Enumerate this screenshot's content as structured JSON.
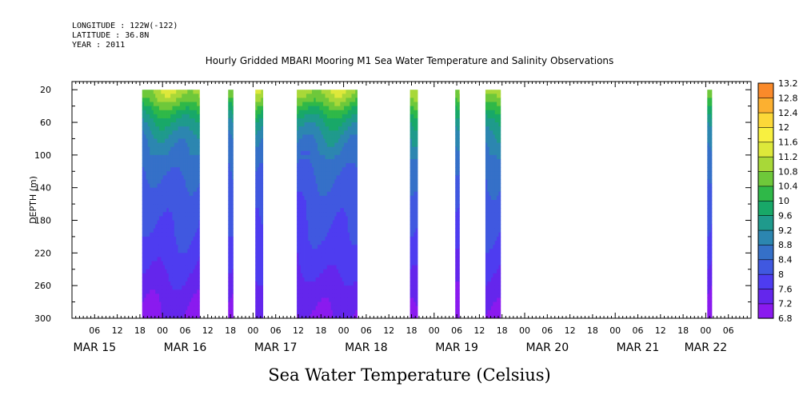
{
  "header": {
    "longitude": "LONGITUDE : 122W(-122)",
    "latitude": "LATITUDE : 36.8N",
    "year": "YEAR : 2011"
  },
  "chart_data": {
    "type": "heatmap",
    "title": "Hourly Gridded MBARI Mooring M1 Sea Water Temperature and Salinity Observations",
    "ylabel": "DEPTH (m)",
    "units_label": "Sea Water Temperature (Celsius)",
    "y_axis": {
      "min": 0,
      "max": 300,
      "inverted": true,
      "ticks": [
        20,
        60,
        100,
        140,
        180,
        220,
        260,
        300
      ],
      "labels": [
        "20",
        "60",
        "100",
        "140",
        "180",
        "220",
        "260",
        "300"
      ]
    },
    "x_axis": {
      "start_hour": 0,
      "end_hour": 180,
      "hour_labels": [
        "06",
        "12",
        "18",
        "00",
        "06",
        "12",
        "18",
        "00",
        "06",
        "12",
        "18",
        "00",
        "06",
        "12",
        "18",
        "00",
        "06",
        "12",
        "18",
        "00",
        "06",
        "12",
        "18",
        "00",
        "06",
        "12",
        "18",
        "00",
        "06"
      ],
      "date_labels": [
        {
          "label": "MAR 15",
          "hour": 6
        },
        {
          "label": "MAR 16",
          "hour": 30
        },
        {
          "label": "MAR 17",
          "hour": 54
        },
        {
          "label": "MAR 18",
          "hour": 78
        },
        {
          "label": "MAR 19",
          "hour": 102
        },
        {
          "label": "MAR 20",
          "hour": 126
        },
        {
          "label": "MAR 21",
          "hour": 150
        },
        {
          "label": "MAR 22",
          "hour": 168
        }
      ]
    },
    "data_segments": [
      {
        "start_hour": 18.6,
        "end_hour": 33.8
      },
      {
        "start_hour": 41.4,
        "end_hour": 42.7
      },
      {
        "start_hour": 48.6,
        "end_hour": 50.6
      },
      {
        "start_hour": 59.6,
        "end_hour": 75.6
      },
      {
        "start_hour": 89.6,
        "end_hour": 91.6
      },
      {
        "start_hour": 101.6,
        "end_hour": 102.7
      },
      {
        "start_hour": 109.6,
        "end_hour": 113.6
      },
      {
        "start_hour": 168.4,
        "end_hour": 169.6
      }
    ],
    "profile": [
      {
        "depth": 10,
        "temp": 11.2
      },
      {
        "depth": 20,
        "temp": 11.0
      },
      {
        "depth": 30,
        "temp": 10.7
      },
      {
        "depth": 45,
        "temp": 10.0
      },
      {
        "depth": 60,
        "temp": 9.4
      },
      {
        "depth": 80,
        "temp": 8.9
      },
      {
        "depth": 100,
        "temp": 8.6
      },
      {
        "depth": 130,
        "temp": 8.3
      },
      {
        "depth": 160,
        "temp": 8.1
      },
      {
        "depth": 200,
        "temp": 7.9
      },
      {
        "depth": 240,
        "temp": 7.6
      },
      {
        "depth": 270,
        "temp": 7.3
      },
      {
        "depth": 300,
        "temp": 7.1
      }
    ],
    "colorbar": {
      "levels": [
        6.8,
        7.2,
        7.6,
        8,
        8.4,
        8.8,
        9.2,
        9.6,
        10,
        10.4,
        10.8,
        11.2,
        11.6,
        12,
        12.4,
        12.8,
        13.2
      ],
      "colors": [
        "#c800f0",
        "#8a1aef",
        "#6426ec",
        "#4e3cf0",
        "#4058e0",
        "#3570c8",
        "#2c86b0",
        "#1f9a8c",
        "#18a868",
        "#2fb848",
        "#6ec83a",
        "#a8d838",
        "#dde83a",
        "#f8f040",
        "#fcd838",
        "#fcb030",
        "#fa8a2a",
        "#f45e22",
        "#e8361c",
        "#d01c16",
        "#b00c10",
        "#900808"
      ]
    }
  }
}
